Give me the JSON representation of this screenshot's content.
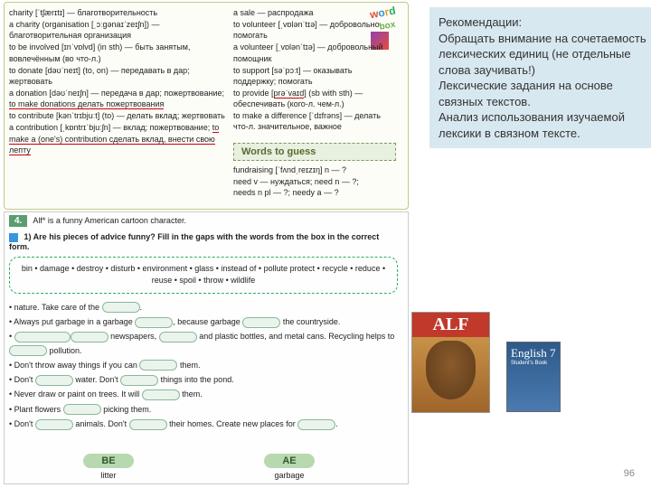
{
  "wordbox_label": "word box",
  "vocab_left": [
    {
      "t": "charity [ˈtʃærɪtɪ] — благотворительность"
    },
    {
      "t": "a charity (organisation [ˌɔːgənaɪˈzeɪʃn]) — благотворительная организация"
    },
    {
      "t": "to be involved [ɪnˈvɒlvd] (in sth) — быть занятым, вовлечённым (во что-л.)"
    },
    {
      "t": "to donate [dəʊˈneɪt] (to, on) — передавать в дар; жертвовать"
    },
    {
      "t": "a donation [dəʊˈneɪʃn] — передача в дар; пожертвование; ",
      "red": "to make donations делать пожертвования"
    },
    {
      "t": "to contribute [kənˈtrɪbjuːt] (to) — делать вклад; жертвовать"
    },
    {
      "t": "a contribution [ˌkɒntrɪˈbjuːʃn] — вклад; пожертвование; ",
      "red": "to make a (one's) contribution сделать вклад, внести свою лепту"
    }
  ],
  "vocab_mid": [
    {
      "t": "a sale — распродажа"
    },
    {
      "t": "to volunteer [ˌvɒlənˈtɪə] — добровольно помогать"
    },
    {
      "t": "a volunteer [ˌvɒlənˈtɪə] — добровольный помощник"
    },
    {
      "t": "to support [səˈpɔːt] — оказывать поддержку; помогать"
    },
    {
      "t": "to provide [",
      "red2": "prəˈvaɪd",
      "t2": "] (sb with sth) — обеспечивать (кого-л. чем-л.)"
    },
    {
      "t": "to make a difference [ˈdɪfrəns] — делать что-л. значительное, важное"
    }
  ],
  "words_guess_title": "Words to guess",
  "words_guess": [
    "fundraising [ˈfʌndˌreɪzɪŋ] n — ?",
    "need v — нуждаться; need n — ?;",
    "needs n pl — ?; needy a — ?"
  ],
  "recommend": {
    "title": "Рекомендации:",
    "lines": [
      "Обращать внимание на сочетаемость лексических единиц (не отдельные слова заучивать!)",
      "Лексические задания на основе связных текстов.",
      "Анализ использования изучаемой лексики в связном тексте."
    ]
  },
  "ex4": {
    "num": "4.",
    "intro_html": "Alf* is a funny American cartoon character.",
    "sub": "1) Are his pieces of advice funny? Fill in the gaps with the words from the box in the correct form.",
    "wordbank": "bin • damage • destroy • disturb • environment • glass • instead of • pollute protect • recycle • reduce • reuse • spoil • throw • wildlife",
    "items": [
      [
        " nature. Take care of the ",
        "."
      ],
      [
        "Always put garbage in a garbage ",
        ", because garbage ",
        " the countryside."
      ],
      [
        "",
        " newspapers, ",
        " and plastic bottles, and metal cans. Recycling helps to ",
        " pollution."
      ],
      [
        "Don't throw away things if you can ",
        " them."
      ],
      [
        "Don't ",
        " water. Don't ",
        " things into the pond."
      ],
      [
        "Never draw or paint on trees. It will ",
        " them."
      ],
      [
        "Plant flowers ",
        " picking them."
      ],
      [
        "Don't ",
        " animals. Don't ",
        " their homes. Create new places for ",
        "."
      ]
    ]
  },
  "be_ae": {
    "be_head": "BE",
    "ae_head": "AE",
    "be_word": "litter",
    "ae_word": "garbage"
  },
  "alf_title": "ALF",
  "eng7_title": "English 7",
  "eng7_sub": "Student's Book",
  "page": "96"
}
